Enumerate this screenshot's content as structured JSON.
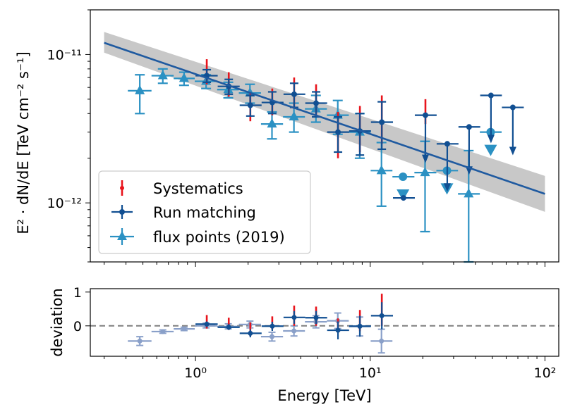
{
  "chart_data": [
    {
      "type": "scatter",
      "panel": "main",
      "xscale": "log",
      "yscale": "log",
      "xlim": [
        0.25,
        120
      ],
      "ylim": [
        4e-13,
        2e-11
      ],
      "xlabel": "",
      "ylabel": "E² · dN/dE [TeV cm⁻² s⁻¹]",
      "ytick_labels": [
        {
          "value": 1e-11,
          "label": "10⁻¹¹"
        },
        {
          "value": 1e-12,
          "label": "10⁻¹²"
        }
      ],
      "model_line": {
        "name": "power-law fit",
        "x": [
          0.3,
          100
        ],
        "y": [
          1.2e-11,
          1.15e-12
        ],
        "band_upper": [
          1.42e-11,
          1.52e-12
        ],
        "band_lower": [
          1.03e-11,
          8.7e-13
        ],
        "color": "#1f5aa0",
        "band_color": "#c8c8c8"
      },
      "legend": {
        "position": "lower-left",
        "entries": [
          "Systematics",
          "Run matching",
          "flux points (2019)"
        ]
      },
      "series": [
        {
          "name": "flux points (2019)",
          "color": "#2b91c3",
          "marker": "triangle",
          "points": [
            {
              "x": 0.48,
              "y": 5.7e-12,
              "xlo": 0.41,
              "xhi": 0.56,
              "ylo": 4e-12,
              "yhi": 7.3e-12
            },
            {
              "x": 0.65,
              "y": 7.2e-12,
              "xlo": 0.56,
              "xhi": 0.75,
              "ylo": 6.4e-12,
              "yhi": 8e-12
            },
            {
              "x": 0.86,
              "y": 6.9e-12,
              "xlo": 0.75,
              "xhi": 0.99,
              "ylo": 6.2e-12,
              "yhi": 7.6e-12
            },
            {
              "x": 1.15,
              "y": 6.6e-12,
              "xlo": 0.99,
              "xhi": 1.33,
              "ylo": 5.9e-12,
              "yhi": 7.3e-12
            },
            {
              "x": 1.54,
              "y": 5.8e-12,
              "xlo": 1.33,
              "xhi": 1.77,
              "ylo": 5.1e-12,
              "yhi": 6.5e-12
            },
            {
              "x": 2.05,
              "y": 5.5e-12,
              "xlo": 1.77,
              "xhi": 2.37,
              "ylo": 4.7e-12,
              "yhi": 6.3e-12
            },
            {
              "x": 2.74,
              "y": 3.4e-12,
              "xlo": 2.37,
              "xhi": 3.17,
              "ylo": 2.7e-12,
              "yhi": 4.1e-12
            },
            {
              "x": 3.66,
              "y": 3.8e-12,
              "xlo": 3.17,
              "xhi": 4.23,
              "ylo": 3e-12,
              "yhi": 4.7e-12
            },
            {
              "x": 4.89,
              "y": 4.3e-12,
              "xlo": 4.23,
              "xhi": 5.65,
              "ylo": 3.5e-12,
              "yhi": 5.3e-12
            },
            {
              "x": 6.52,
              "y": 3.9e-12,
              "xlo": 5.65,
              "xhi": 7.54,
              "ylo": 2.9e-12,
              "yhi": 4.9e-12
            },
            {
              "x": 8.71,
              "y": 3e-12,
              "xlo": 7.54,
              "xhi": 10.06,
              "ylo": 2e-12,
              "yhi": 4e-12
            },
            {
              "x": 11.6,
              "y": 1.65e-12,
              "xlo": 10.06,
              "xhi": 13.4,
              "ylo": 9.5e-13,
              "yhi": 2.55e-12
            },
            {
              "x": 20.6,
              "y": 1.6e-12,
              "xlo": 17.9,
              "xhi": 23.9,
              "ylo": 6.4e-13,
              "yhi": 2.6e-12
            },
            {
              "x": 36.6,
              "y": 1.15e-12,
              "xlo": 31.8,
              "xhi": 42.4,
              "ylo": 4e-13,
              "yhi": 2.25e-12
            }
          ],
          "upper_limits": [
            {
              "x": 15.4,
              "y": 1.5e-12,
              "xlo": 13.4,
              "xhi": 17.9
            },
            {
              "x": 27.5,
              "y": 1.65e-12,
              "xlo": 23.9,
              "xhi": 31.8
            },
            {
              "x": 48.9,
              "y": 3e-12,
              "xlo": 42.4,
              "xhi": 56.5
            }
          ]
        },
        {
          "name": "Run matching",
          "color": "#114f92",
          "marker": "circle",
          "points": [
            {
              "x": 1.16,
              "y": 7.2e-12,
              "xlo": 1.0,
              "xhi": 1.34,
              "ylo": 6.5e-12,
              "yhi": 7.9e-12
            },
            {
              "x": 1.55,
              "y": 6.1e-12,
              "xlo": 1.34,
              "xhi": 1.79,
              "ylo": 5.4e-12,
              "yhi": 6.8e-12
            },
            {
              "x": 2.06,
              "y": 4.55e-12,
              "xlo": 1.79,
              "xhi": 2.39,
              "ylo": 3.85e-12,
              "yhi": 5.3e-12
            },
            {
              "x": 2.75,
              "y": 4.75e-12,
              "xlo": 2.39,
              "xhi": 3.19,
              "ylo": 4e-12,
              "yhi": 5.6e-12
            },
            {
              "x": 3.67,
              "y": 5.4e-12,
              "xlo": 3.19,
              "xhi": 4.25,
              "ylo": 4.4e-12,
              "yhi": 6.4e-12
            },
            {
              "x": 4.9,
              "y": 4.7e-12,
              "xlo": 4.25,
              "xhi": 5.67,
              "ylo": 3.8e-12,
              "yhi": 5.6e-12
            },
            {
              "x": 6.54,
              "y": 3e-12,
              "xlo": 5.67,
              "xhi": 7.57,
              "ylo": 2.2e-12,
              "yhi": 3.8e-12
            },
            {
              "x": 8.73,
              "y": 3.05e-12,
              "xlo": 7.57,
              "xhi": 10.1,
              "ylo": 2.1e-12,
              "yhi": 4e-12
            },
            {
              "x": 11.65,
              "y": 3.5e-12,
              "xlo": 10.1,
              "xhi": 13.5,
              "ylo": 2.3e-12,
              "yhi": 4.8e-12
            },
            {
              "x": 15.5,
              "y": 1.08e-12,
              "xlo": 13.5,
              "xhi": 18.0,
              "ylo": 1.08e-12,
              "yhi": 1.08e-12
            }
          ],
          "upper_limits": [
            {
              "x": 20.7,
              "y": 3.9e-12,
              "xlo": 18.0,
              "xhi": 24.0
            },
            {
              "x": 27.6,
              "y": 2.5e-12,
              "xlo": 24.0,
              "xhi": 32.0
            },
            {
              "x": 36.8,
              "y": 3.25e-12,
              "xlo": 32.0,
              "xhi": 42.6
            },
            {
              "x": 49.1,
              "y": 5.3e-12,
              "xlo": 42.6,
              "xhi": 56.7
            },
            {
              "x": 65.5,
              "y": 4.4e-12,
              "xlo": 56.7,
              "xhi": 75.7
            }
          ]
        },
        {
          "name": "Systematics",
          "color": "#e8141c",
          "marker": "point",
          "bars": [
            {
              "x": 1.16,
              "ylo": 6.3e-12,
              "yhi": 9.3e-12
            },
            {
              "x": 1.55,
              "ylo": 5.2e-12,
              "yhi": 7.6e-12
            },
            {
              "x": 2.06,
              "ylo": 3.55e-12,
              "yhi": 5.6e-12
            },
            {
              "x": 2.75,
              "ylo": 3.9e-12,
              "yhi": 5.9e-12
            },
            {
              "x": 3.67,
              "ylo": 4.3e-12,
              "yhi": 7e-12
            },
            {
              "x": 4.9,
              "ylo": 3.8e-12,
              "yhi": 6.3e-12
            },
            {
              "x": 6.54,
              "ylo": 2e-12,
              "yhi": 4.1e-12
            },
            {
              "x": 8.73,
              "ylo": 2.2e-12,
              "yhi": 4.5e-12
            },
            {
              "x": 11.65,
              "ylo": 2.5e-12,
              "yhi": 5.3e-12
            },
            {
              "x": 20.7,
              "ylo": 3.4e-12,
              "yhi": 5e-12
            }
          ]
        }
      ]
    },
    {
      "type": "scatter",
      "panel": "residuals",
      "xscale": "log",
      "xlim": [
        0.25,
        120
      ],
      "ylim": [
        -0.9,
        1.1
      ],
      "xlabel": "Energy [TeV]",
      "ylabel": "deviation",
      "ytick_labels": [
        {
          "value": 1,
          "label": "1"
        },
        {
          "value": 0,
          "label": "0"
        }
      ],
      "xtick_labels": [
        {
          "value": 1,
          "label": "10⁰"
        },
        {
          "value": 10,
          "label": "10¹"
        },
        {
          "value": 100,
          "label": "10²"
        }
      ],
      "reference_line": {
        "y": 0,
        "style": "dashed",
        "color": "#7f7f7f"
      },
      "series": [
        {
          "name": "flux points (2019)",
          "color": "#8aa0c9",
          "points": [
            {
              "x": 0.48,
              "y": -0.45,
              "xlo": 0.41,
              "xhi": 0.56,
              "ylo": -0.58,
              "yhi": -0.32
            },
            {
              "x": 0.65,
              "y": -0.17,
              "xlo": 0.56,
              "xhi": 0.75,
              "ylo": -0.22,
              "yhi": -0.12
            },
            {
              "x": 0.86,
              "y": -0.09,
              "xlo": 0.75,
              "xhi": 0.99,
              "ylo": -0.14,
              "yhi": -0.04
            },
            {
              "x": 1.15,
              "y": 0.0,
              "xlo": 0.99,
              "xhi": 1.33,
              "ylo": -0.06,
              "yhi": 0.08
            },
            {
              "x": 1.54,
              "y": -0.02,
              "xlo": 1.33,
              "xhi": 1.77,
              "ylo": -0.09,
              "yhi": 0.06
            },
            {
              "x": 2.05,
              "y": 0.04,
              "xlo": 1.77,
              "xhi": 2.37,
              "ylo": -0.06,
              "yhi": 0.14
            },
            {
              "x": 2.74,
              "y": -0.32,
              "xlo": 2.37,
              "xhi": 3.17,
              "ylo": -0.45,
              "yhi": -0.19
            },
            {
              "x": 3.66,
              "y": -0.15,
              "xlo": 3.17,
              "xhi": 4.23,
              "ylo": -0.3,
              "yhi": 0.0
            },
            {
              "x": 4.89,
              "y": 0.12,
              "xlo": 4.23,
              "xhi": 5.65,
              "ylo": -0.06,
              "yhi": 0.3
            },
            {
              "x": 6.52,
              "y": 0.15,
              "xlo": 5.65,
              "xhi": 7.54,
              "ylo": -0.08,
              "yhi": 0.38
            },
            {
              "x": 8.71,
              "y": -0.02,
              "xlo": 7.54,
              "xhi": 10.06,
              "ylo": -0.3,
              "yhi": 0.26
            },
            {
              "x": 11.6,
              "y": -0.45,
              "xlo": 10.06,
              "xhi": 13.4,
              "ylo": -0.8,
              "yhi": -0.1
            }
          ]
        },
        {
          "name": "Run matching",
          "color": "#114f92",
          "points": [
            {
              "x": 1.16,
              "y": 0.05,
              "xlo": 1.0,
              "xhi": 1.34,
              "ylo": -0.03,
              "yhi": 0.13
            },
            {
              "x": 1.55,
              "y": -0.04,
              "xlo": 1.34,
              "xhi": 1.79,
              "ylo": -0.12,
              "yhi": 0.05
            },
            {
              "x": 2.06,
              "y": -0.22,
              "xlo": 1.79,
              "xhi": 2.39,
              "ylo": -0.34,
              "yhi": -0.1
            },
            {
              "x": 2.75,
              "y": -0.01,
              "xlo": 2.39,
              "xhi": 3.19,
              "ylo": -0.15,
              "yhi": 0.12
            },
            {
              "x": 3.67,
              "y": 0.25,
              "xlo": 3.19,
              "xhi": 4.25,
              "ylo": 0.06,
              "yhi": 0.44
            },
            {
              "x": 4.9,
              "y": 0.24,
              "xlo": 4.25,
              "xhi": 5.67,
              "ylo": 0.05,
              "yhi": 0.44
            },
            {
              "x": 6.54,
              "y": -0.13,
              "xlo": 5.67,
              "xhi": 7.57,
              "ylo": -0.4,
              "yhi": 0.13
            },
            {
              "x": 8.73,
              "y": -0.01,
              "xlo": 7.57,
              "xhi": 10.1,
              "ylo": -0.32,
              "yhi": 0.3
            },
            {
              "x": 11.65,
              "y": 0.3,
              "xlo": 10.1,
              "xhi": 13.5,
              "ylo": -0.1,
              "yhi": 0.7
            }
          ]
        },
        {
          "name": "Systematics",
          "color": "#e8141c",
          "bars": [
            {
              "x": 1.16,
              "ylo": -0.08,
              "yhi": 0.32
            },
            {
              "x": 1.55,
              "ylo": -0.12,
              "yhi": 0.24
            },
            {
              "x": 2.06,
              "ylo": -0.3,
              "yhi": 0.1
            },
            {
              "x": 2.75,
              "ylo": -0.1,
              "yhi": 0.28
            },
            {
              "x": 3.67,
              "ylo": 0.0,
              "yhi": 0.6
            },
            {
              "x": 4.9,
              "ylo": 0.0,
              "yhi": 0.57
            },
            {
              "x": 6.54,
              "ylo": -0.2,
              "yhi": 0.22
            },
            {
              "x": 8.73,
              "ylo": -0.16,
              "yhi": 0.47
            },
            {
              "x": 11.65,
              "ylo": 0.0,
              "yhi": 0.95
            }
          ]
        }
      ]
    }
  ]
}
